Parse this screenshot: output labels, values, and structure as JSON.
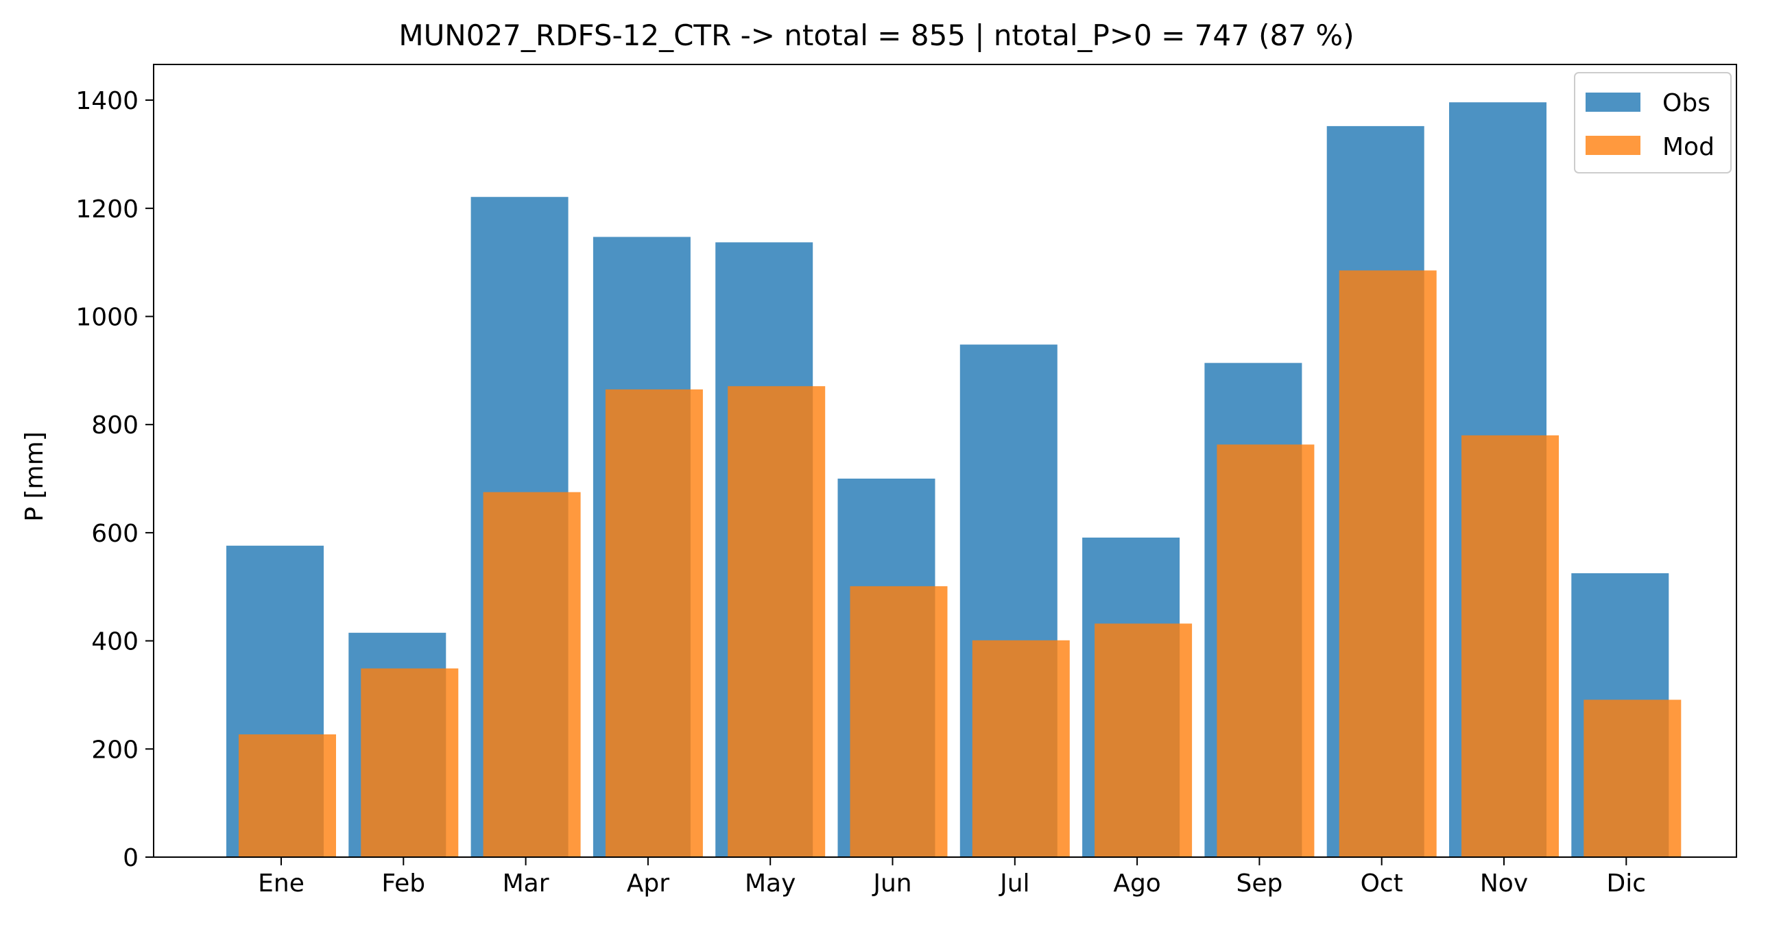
{
  "chart_data": {
    "type": "bar",
    "title": "MUN027_RDFS-12_CTR -> ntotal = 855 | ntotal_P>0 = 747 (87 %)",
    "xlabel": "",
    "ylabel": "P [mm]",
    "categories": [
      "Ene",
      "Feb",
      "Mar",
      "Apr",
      "May",
      "Jun",
      "Jul",
      "Ago",
      "Sep",
      "Oct",
      "Nov",
      "Dic"
    ],
    "series": [
      {
        "name": "Obs",
        "color": "#1f77b4",
        "values": [
          576,
          415,
          1221,
          1147,
          1137,
          700,
          948,
          591,
          914,
          1352,
          1396,
          525
        ]
      },
      {
        "name": "Mod",
        "color": "#ff7f0e",
        "values": [
          227,
          349,
          675,
          865,
          871,
          501,
          401,
          432,
          763,
          1085,
          780,
          291
        ]
      }
    ],
    "ylim": [
      0,
      1466
    ],
    "yticks": [
      0,
      200,
      400,
      600,
      800,
      1000,
      1200,
      1400
    ],
    "grid": false,
    "legend_position": "top-right",
    "bar_alpha": 0.8
  }
}
